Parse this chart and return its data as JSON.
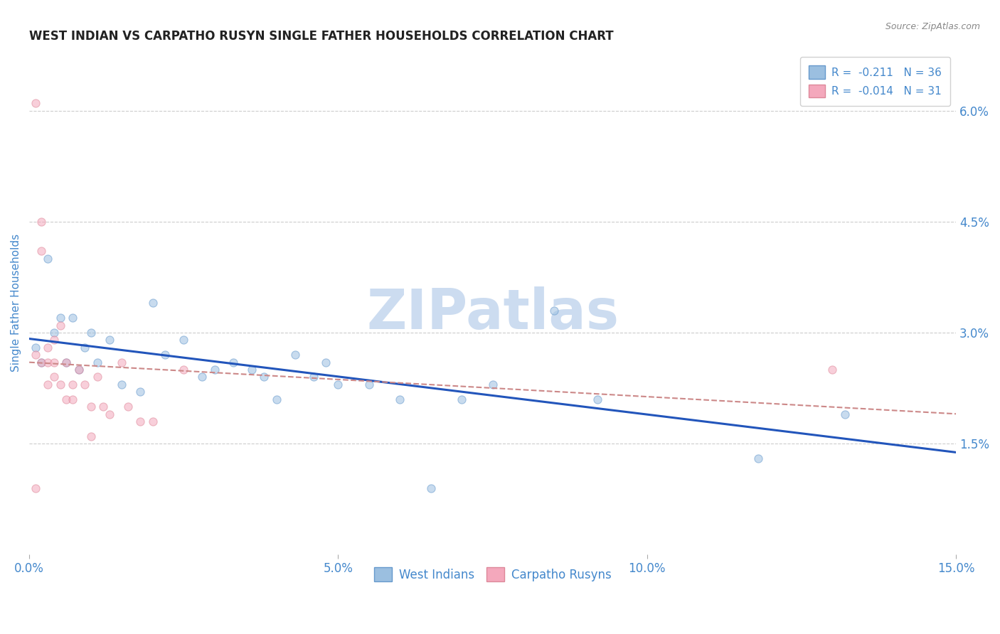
{
  "title": "WEST INDIAN VS CARPATHO RUSYN SINGLE FATHER HOUSEHOLDS CORRELATION CHART",
  "source": "Source: ZipAtlas.com",
  "ylabel": "Single Father Households",
  "xlim": [
    0.0,
    0.15
  ],
  "ylim": [
    0.0,
    0.068
  ],
  "xticks": [
    0.0,
    0.05,
    0.1,
    0.15
  ],
  "xticklabels": [
    "0.0%",
    "5.0%",
    "10.0%",
    "15.0%"
  ],
  "right_yticks": [
    0.015,
    0.03,
    0.045,
    0.06
  ],
  "right_yticklabels": [
    "1.5%",
    "3.0%",
    "4.5%",
    "6.0%"
  ],
  "legend_entries": [
    {
      "label": "R =  -0.211   N = 36",
      "color": "#a8c4e0"
    },
    {
      "label": "R =  -0.014   N = 31",
      "color": "#f4b8c8"
    }
  ],
  "legend_labels": [
    "West Indians",
    "Carpatho Rusyns"
  ],
  "west_indians_x": [
    0.001,
    0.002,
    0.003,
    0.004,
    0.005,
    0.006,
    0.007,
    0.008,
    0.009,
    0.01,
    0.011,
    0.013,
    0.015,
    0.018,
    0.02,
    0.022,
    0.025,
    0.028,
    0.03,
    0.033,
    0.036,
    0.038,
    0.04,
    0.043,
    0.046,
    0.048,
    0.05,
    0.055,
    0.06,
    0.065,
    0.07,
    0.075,
    0.085,
    0.092,
    0.118,
    0.132
  ],
  "west_indians_y": [
    0.028,
    0.026,
    0.04,
    0.03,
    0.032,
    0.026,
    0.032,
    0.025,
    0.028,
    0.03,
    0.026,
    0.029,
    0.023,
    0.022,
    0.034,
    0.027,
    0.029,
    0.024,
    0.025,
    0.026,
    0.025,
    0.024,
    0.021,
    0.027,
    0.024,
    0.026,
    0.023,
    0.023,
    0.021,
    0.009,
    0.021,
    0.023,
    0.033,
    0.021,
    0.013,
    0.019
  ],
  "carpatho_rusyns_x": [
    0.001,
    0.001,
    0.001,
    0.002,
    0.002,
    0.002,
    0.003,
    0.003,
    0.003,
    0.004,
    0.004,
    0.004,
    0.005,
    0.005,
    0.006,
    0.006,
    0.007,
    0.007,
    0.008,
    0.009,
    0.01,
    0.01,
    0.011,
    0.012,
    0.013,
    0.015,
    0.016,
    0.018,
    0.02,
    0.025,
    0.13
  ],
  "carpatho_rusyns_y": [
    0.061,
    0.027,
    0.009,
    0.045,
    0.041,
    0.026,
    0.028,
    0.026,
    0.023,
    0.029,
    0.026,
    0.024,
    0.031,
    0.023,
    0.026,
    0.021,
    0.023,
    0.021,
    0.025,
    0.023,
    0.02,
    0.016,
    0.024,
    0.02,
    0.019,
    0.026,
    0.02,
    0.018,
    0.018,
    0.025,
    0.025
  ],
  "bg_color": "#ffffff",
  "scatter_alpha": 0.55,
  "scatter_size": 65,
  "west_indians_color": "#9bbfe0",
  "carpatho_rusyns_color": "#f4a8bc",
  "west_indians_edge": "#6699cc",
  "carpatho_rusyns_edge": "#dd8899",
  "trend_blue_color": "#2255bb",
  "trend_pink_color": "#cc8888",
  "watermark_text": "ZIPatlas",
  "watermark_color": "#ccdcf0",
  "grid_color": "#cccccc",
  "grid_style": "--",
  "title_color": "#222222",
  "axis_color": "#4488cc",
  "source_color": "#888888"
}
